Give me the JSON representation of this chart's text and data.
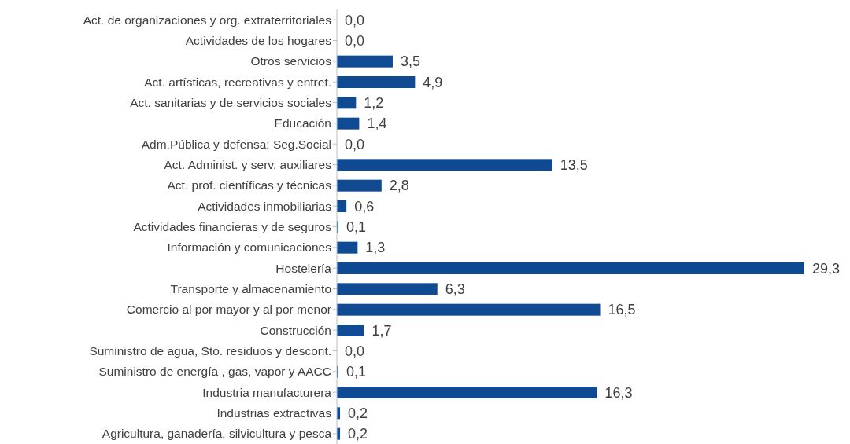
{
  "chart_data": {
    "type": "bar",
    "orientation": "horizontal",
    "value_labels": [
      "0,0",
      "0,0",
      "3,5",
      "4,9",
      "1,2",
      "1,4",
      "0,0",
      "13,5",
      "2,8",
      "0,6",
      "0,1",
      "1,3",
      "29,3",
      "6,3",
      "16,5",
      "1,7",
      "0,0",
      "0,1",
      "16,3",
      "0,2",
      "0,2"
    ],
    "grid": false,
    "legend": false,
    "color": "#0f4a92",
    "categories": [
      "Act. de organizaciones y org. extraterritoriales",
      "Actividades de los hogares",
      "Otros servicios",
      "Act. artísticas, recreativas y entret.",
      "Act. sanitarias y de servicios sociales",
      "Educación",
      "Adm.Pública y defensa; Seg.Social",
      "Act. Administ. y serv. auxiliares",
      "Act. prof. científicas y técnicas",
      "Actividades inmobiliarias",
      "Actividades financieras y de seguros",
      "Información y comunicaciones",
      "Hostelería",
      "Transporte y almacenamiento",
      "Comercio al por mayor y al por menor",
      "Construcción",
      "Suministro de agua, Sto. residuos y descont.",
      "Suministro de energía , gas, vapor y AACC",
      "Industria manufacturera",
      "Industrias extractivas",
      "Agricultura, ganadería, silvicultura y pesca"
    ],
    "values": [
      0.0,
      0.0,
      3.5,
      4.9,
      1.2,
      1.4,
      0.0,
      13.5,
      2.8,
      0.6,
      0.1,
      1.3,
      29.3,
      6.3,
      16.5,
      1.7,
      0.0,
      0.1,
      16.3,
      0.2,
      0.2
    ]
  }
}
